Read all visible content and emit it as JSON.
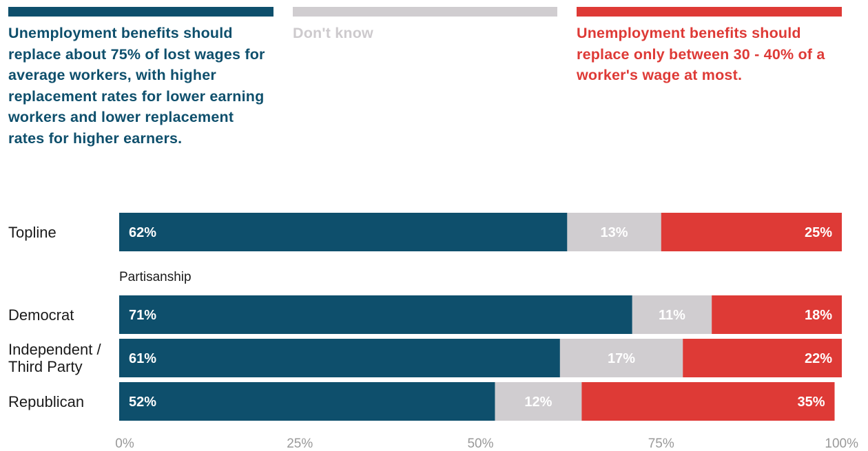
{
  "colors": {
    "agree": "#0e4f6c",
    "dont_know": "#d0cdd0",
    "disagree": "#de3a36"
  },
  "legend": [
    {
      "key": "agree",
      "text": "Unemployment benefits should replace about 75% of lost wages for average workers, with higher replacement rates for lower earning workers and lower replacement rates for higher earners."
    },
    {
      "key": "dont_know",
      "text": "Don't know"
    },
    {
      "key": "disagree",
      "text": "Unemployment benefits should replace only between 30 - 40% of a worker's wage at most."
    }
  ],
  "chart_data": {
    "type": "bar",
    "orientation": "horizontal",
    "stacked": true,
    "title": "",
    "xlabel": "",
    "ylabel": "",
    "xlim": [
      0,
      100
    ],
    "x_ticks": [
      "0%",
      "25%",
      "50%",
      "75%",
      "100%"
    ],
    "section_label": "Partisanship",
    "categories": [
      "Topline",
      "Democrat",
      "Independent / Third Party",
      "Republican"
    ],
    "category_lines": [
      [
        "Topline"
      ],
      [
        "Democrat"
      ],
      [
        "Independent /",
        "Third Party"
      ],
      [
        "Republican"
      ]
    ],
    "series": [
      {
        "key": "agree",
        "values": [
          62,
          71,
          61,
          52
        ],
        "labels": [
          "62%",
          "71%",
          "61%",
          "52%"
        ]
      },
      {
        "key": "dont_know",
        "values": [
          13,
          11,
          17,
          12
        ],
        "labels": [
          "13%",
          "11%",
          "17%",
          "12%"
        ]
      },
      {
        "key": "disagree",
        "values": [
          25,
          18,
          22,
          35
        ],
        "labels": [
          "25%",
          "18%",
          "22%",
          "35%"
        ]
      }
    ],
    "grid": false,
    "legend_position": "top"
  }
}
